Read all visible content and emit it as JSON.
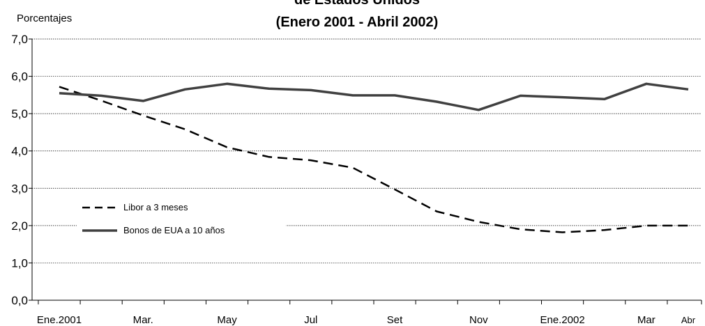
{
  "chart_data": {
    "type": "line",
    "title_lines": [
      "de Estados Unidos",
      "(Enero 2001 - Abril 2002)"
    ],
    "ylabel": "Porcentajes",
    "xlabel": "",
    "ylim": [
      0,
      7
    ],
    "yticks": [
      "0,0",
      "1,0",
      "2,0",
      "3,0",
      "4,0",
      "5,0",
      "6,0",
      "7,0"
    ],
    "grid": true,
    "x_tick_labels": [
      "Ene.2001",
      "Mar.",
      "May",
      "Jul",
      "Set",
      "Nov",
      "Ene.2002",
      "Mar",
      "Abr"
    ],
    "x_tick_months": [
      1,
      3,
      5,
      7,
      9,
      11,
      13,
      15,
      16
    ],
    "x_months": [
      1,
      2,
      3,
      4,
      5,
      6,
      7,
      8,
      9,
      10,
      11,
      12,
      13,
      14,
      15,
      16
    ],
    "series": [
      {
        "name": "Libor a 3 meses",
        "style": "dashed",
        "color": "#000000",
        "values": [
          5.72,
          5.35,
          4.95,
          4.58,
          4.1,
          3.84,
          3.75,
          3.55,
          2.97,
          2.38,
          2.1,
          1.9,
          1.82,
          1.88,
          2.0,
          2.0
        ]
      },
      {
        "name": "Bonos de EUA a 10 años",
        "style": "solid",
        "color": "#404040",
        "values": [
          5.55,
          5.48,
          5.34,
          5.65,
          5.8,
          5.67,
          5.63,
          5.49,
          5.49,
          5.32,
          5.1,
          5.48,
          5.44,
          5.39,
          5.8,
          5.65
        ]
      }
    ],
    "legend_placement": "left-middle"
  }
}
